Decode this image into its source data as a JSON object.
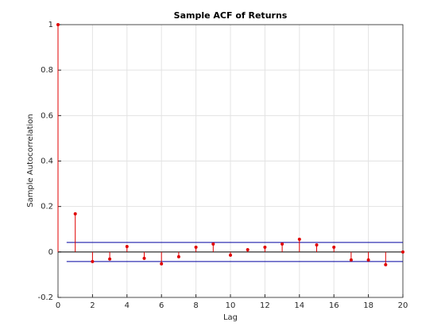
{
  "chart_data": {
    "type": "stem",
    "title": "Sample ACF of Returns",
    "x_label": "Lag",
    "y_label": "Sample Autocorrelation",
    "x": [
      0,
      1,
      2,
      3,
      4,
      5,
      6,
      7,
      8,
      9,
      10,
      11,
      12,
      13,
      14,
      15,
      16,
      17,
      18,
      19,
      20
    ],
    "values": [
      1,
      0.168,
      -0.042,
      -0.031,
      0.024,
      -0.028,
      -0.052,
      -0.021,
      0.021,
      0.035,
      -0.014,
      0.01,
      0.021,
      0.035,
      0.056,
      0.031,
      0.021,
      -0.035,
      -0.035,
      -0.056,
      0
    ],
    "color": "#e00000",
    "bounds": [
      {
        "x": [
          0.5,
          20
        ],
        "y": 0.042
      },
      {
        "x": [
          0.5,
          20
        ],
        "y": -0.042
      }
    ],
    "bounds_color": "#0000a0",
    "xlim": [
      0,
      20
    ],
    "xticks": [
      0,
      2,
      4,
      6,
      8,
      10,
      12,
      14,
      16,
      18,
      20
    ],
    "ylim": [
      -0.2,
      1
    ],
    "yticks": [
      -0.2,
      0,
      0.2,
      0.4,
      0.6,
      0.8,
      1
    ],
    "grid": true
  }
}
